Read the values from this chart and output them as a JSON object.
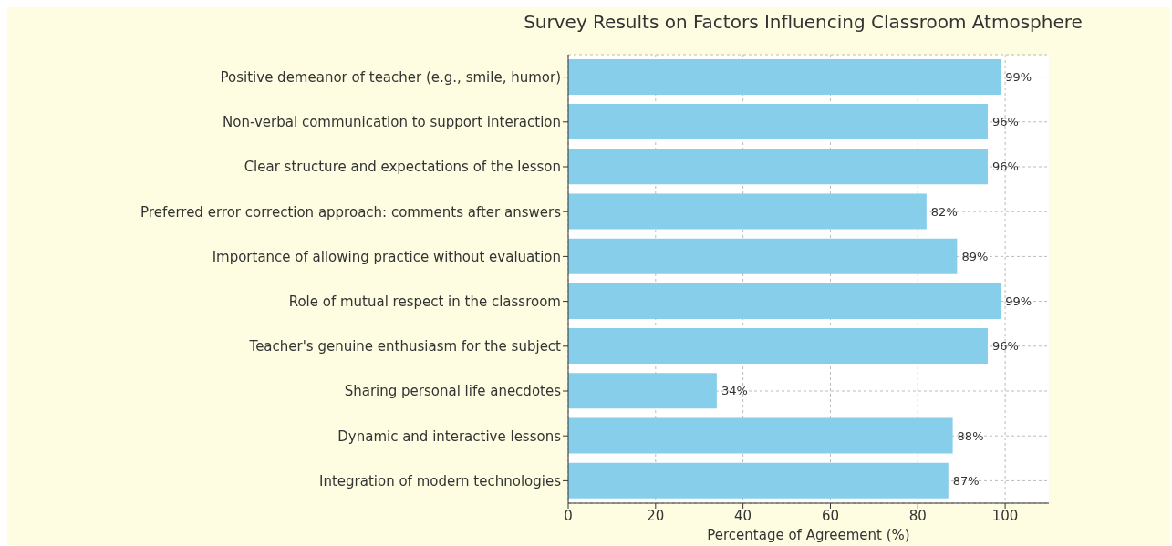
{
  "chart_data": {
    "type": "bar",
    "orientation": "horizontal",
    "title": "Survey Results on Factors Influencing Classroom Atmosphere",
    "xlabel": "Percentage of Agreement (%)",
    "categories": [
      "Positive demeanor of teacher (e.g., smile, humor)",
      "Non-verbal communication to support interaction",
      "Clear structure and expectations of the lesson",
      "Preferred error correction approach: comments after answers",
      "Importance of allowing practice without evaluation",
      "Role of mutual respect in the classroom",
      "Teacher's genuine enthusiasm for the subject",
      "Sharing personal life anecdotes",
      "Dynamic and interactive lessons",
      "Integration of modern technologies"
    ],
    "values": [
      99,
      96,
      96,
      82,
      89,
      99,
      96,
      34,
      88,
      87
    ],
    "value_labels": [
      "99%",
      "96%",
      "96%",
      "82%",
      "89%",
      "99%",
      "96%",
      "34%",
      "88%",
      "87%"
    ],
    "color": "#87ceeb",
    "xlim": [
      0,
      110
    ],
    "xticks": [
      0,
      20,
      40,
      60,
      80,
      100
    ],
    "grid": true
  }
}
